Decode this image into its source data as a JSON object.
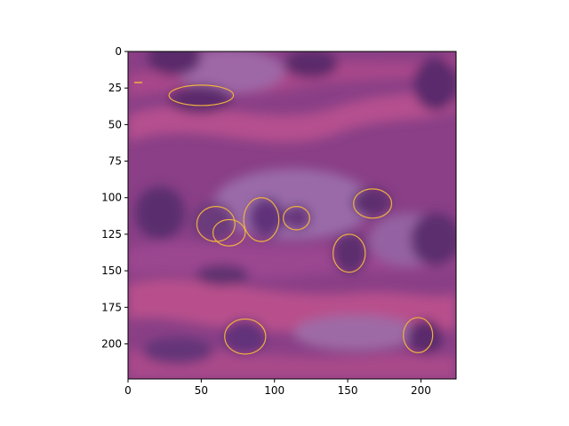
{
  "figure": {
    "xaxis": {
      "range": [
        0,
        224
      ],
      "ticks": [
        0,
        50,
        100,
        150,
        200
      ],
      "tick_labels": [
        "0",
        "50",
        "100",
        "150",
        "200"
      ]
    },
    "yaxis": {
      "range": [
        224,
        0
      ],
      "inverted": true,
      "ticks": [
        0,
        25,
        50,
        75,
        100,
        125,
        150,
        175,
        200
      ],
      "tick_labels": [
        "0",
        "25",
        "50",
        "75",
        "100",
        "125",
        "150",
        "175",
        "200"
      ]
    },
    "image_description_colors": {
      "tissue_base": "#8a3f86",
      "stroma_pink": "#b04a88",
      "nucleus_dark": "#5a2a6a",
      "outline": "#f0b040"
    },
    "nucleus_outlines": [
      {
        "cx": 50,
        "cy": 30,
        "rx": 22,
        "ry": 7
      },
      {
        "cx": 60,
        "cy": 118,
        "rx": 13,
        "ry": 12
      },
      {
        "cx": 69,
        "cy": 124,
        "rx": 11,
        "ry": 9
      },
      {
        "cx": 91,
        "cy": 115,
        "rx": 12,
        "ry": 15
      },
      {
        "cx": 115,
        "cy": 114,
        "rx": 9,
        "ry": 8
      },
      {
        "cx": 167,
        "cy": 104,
        "rx": 13,
        "ry": 10
      },
      {
        "cx": 151,
        "cy": 138,
        "rx": 11,
        "ry": 13
      },
      {
        "cx": 80,
        "cy": 195,
        "rx": 14,
        "ry": 12
      },
      {
        "cx": 198,
        "cy": 194,
        "rx": 10,
        "ry": 12
      }
    ]
  }
}
